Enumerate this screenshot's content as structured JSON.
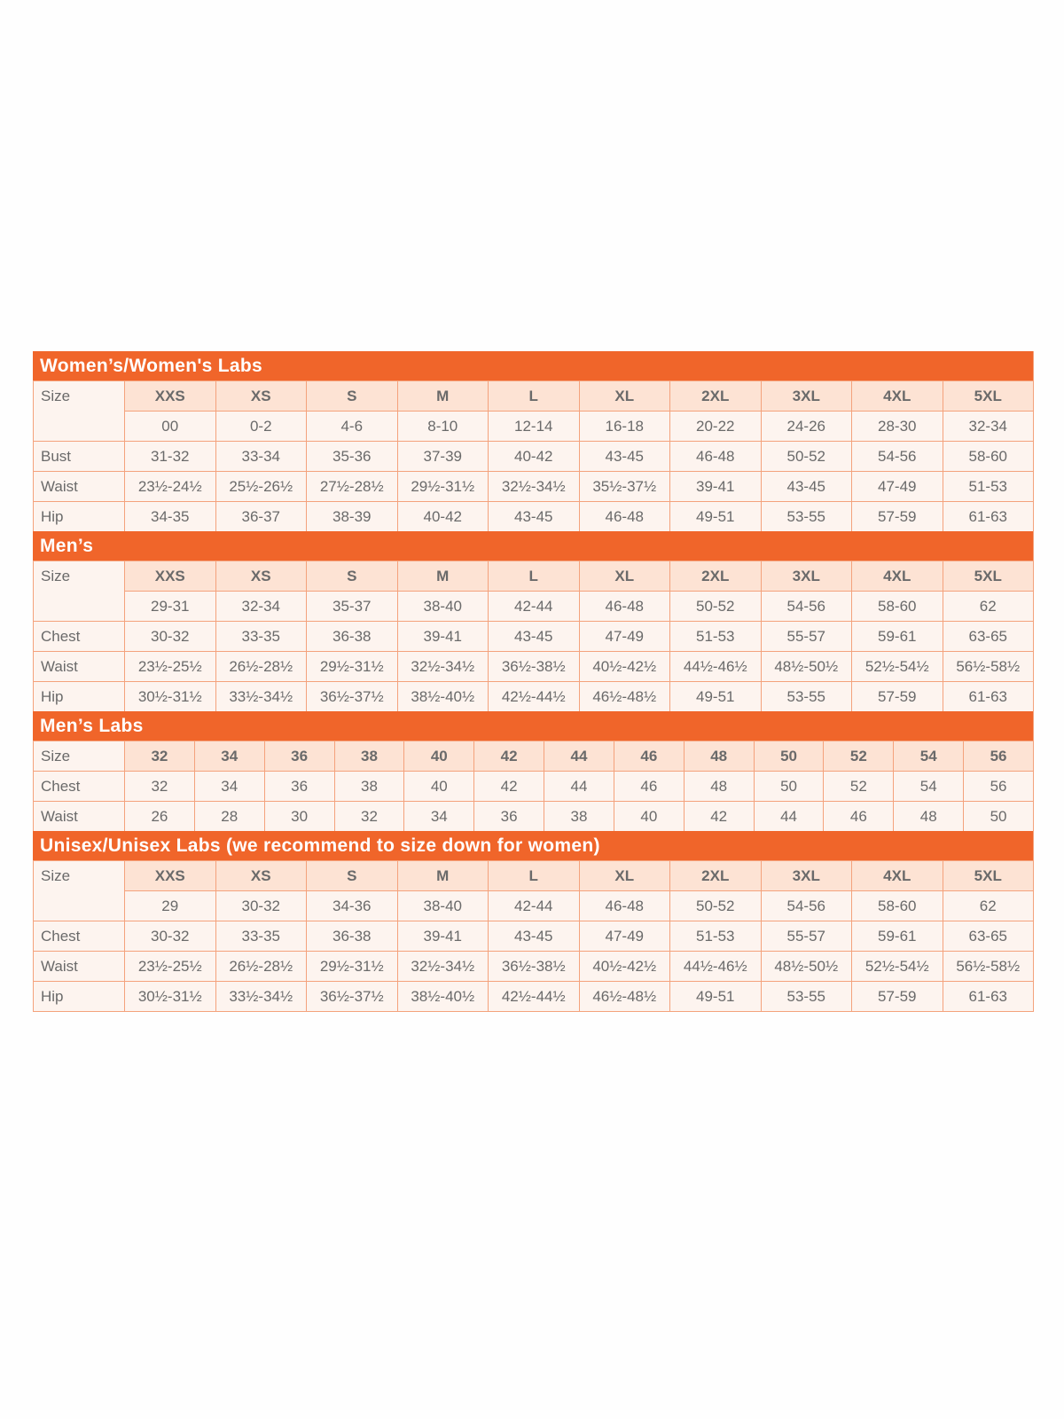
{
  "colors": {
    "accent": "#f0652a",
    "header_cell": "#fde3d4",
    "body_cell": "#fdf4ef",
    "border": "#f4a27c",
    "text": "#6a6a6a"
  },
  "sections": [
    {
      "title": "Women’s/Women's Labs",
      "size_label": "Size",
      "sizes": [
        "XXS",
        "XS",
        "S",
        "M",
        "L",
        "XL",
        "2XL",
        "3XL",
        "4XL",
        "5XL"
      ],
      "alt_sizes": [
        "00",
        "0-2",
        "4-6",
        "8-10",
        "12-14",
        "16-18",
        "20-22",
        "24-26",
        "28-30",
        "32-34"
      ],
      "rows": [
        {
          "label": "Bust",
          "values": [
            "31-32",
            "33-34",
            "35-36",
            "37-39",
            "40-42",
            "43-45",
            "46-48",
            "50-52",
            "54-56",
            "58-60"
          ]
        },
        {
          "label": "Waist",
          "values": [
            "23½-24½",
            "25½-26½",
            "27½-28½",
            "29½-31½",
            "32½-34½",
            "35½-37½",
            "39-41",
            "43-45",
            "47-49",
            "51-53"
          ]
        },
        {
          "label": "Hip",
          "values": [
            "34-35",
            "36-37",
            "38-39",
            "40-42",
            "43-45",
            "46-48",
            "49-51",
            "53-55",
            "57-59",
            "61-63"
          ]
        }
      ]
    },
    {
      "title": "Men’s",
      "size_label": "Size",
      "sizes": [
        "XXS",
        "XS",
        "S",
        "M",
        "L",
        "XL",
        "2XL",
        "3XL",
        "4XL",
        "5XL"
      ],
      "alt_sizes": [
        "29-31",
        "32-34",
        "35-37",
        "38-40",
        "42-44",
        "46-48",
        "50-52",
        "54-56",
        "58-60",
        "62"
      ],
      "rows": [
        {
          "label": "Chest",
          "values": [
            "30-32",
            "33-35",
            "36-38",
            "39-41",
            "43-45",
            "47-49",
            "51-53",
            "55-57",
            "59-61",
            "63-65"
          ]
        },
        {
          "label": "Waist",
          "values": [
            "23½-25½",
            "26½-28½",
            "29½-31½",
            "32½-34½",
            "36½-38½",
            "40½-42½",
            "44½-46½",
            "48½-50½",
            "52½-54½",
            "56½-58½"
          ]
        },
        {
          "label": "Hip",
          "values": [
            "30½-31½",
            "33½-34½",
            "36½-37½",
            "38½-40½",
            "42½-44½",
            "46½-48½",
            "49-51",
            "53-55",
            "57-59",
            "61-63"
          ]
        }
      ]
    },
    {
      "title": "Men’s Labs",
      "size_label": "Size",
      "sizes": [
        "32",
        "34",
        "36",
        "38",
        "40",
        "42",
        "44",
        "46",
        "48",
        "50",
        "52",
        "54",
        "56"
      ],
      "rows": [
        {
          "label": "Chest",
          "values": [
            "32",
            "34",
            "36",
            "38",
            "40",
            "42",
            "44",
            "46",
            "48",
            "50",
            "52",
            "54",
            "56"
          ]
        },
        {
          "label": "Waist",
          "values": [
            "26",
            "28",
            "30",
            "32",
            "34",
            "36",
            "38",
            "40",
            "42",
            "44",
            "46",
            "48",
            "50"
          ]
        }
      ]
    },
    {
      "title": "Unisex/Unisex Labs (we recommend to size down for women)",
      "size_label": "Size",
      "sizes": [
        "XXS",
        "XS",
        "S",
        "M",
        "L",
        "XL",
        "2XL",
        "3XL",
        "4XL",
        "5XL"
      ],
      "alt_sizes": [
        "29",
        "30-32",
        "34-36",
        "38-40",
        "42-44",
        "46-48",
        "50-52",
        "54-56",
        "58-60",
        "62"
      ],
      "rows": [
        {
          "label": "Chest",
          "values": [
            "30-32",
            "33-35",
            "36-38",
            "39-41",
            "43-45",
            "47-49",
            "51-53",
            "55-57",
            "59-61",
            "63-65"
          ]
        },
        {
          "label": "Waist",
          "values": [
            "23½-25½",
            "26½-28½",
            "29½-31½",
            "32½-34½",
            "36½-38½",
            "40½-42½",
            "44½-46½",
            "48½-50½",
            "52½-54½",
            "56½-58½"
          ]
        },
        {
          "label": "Hip",
          "values": [
            "30½-31½",
            "33½-34½",
            "36½-37½",
            "38½-40½",
            "42½-44½",
            "46½-48½",
            "49-51",
            "53-55",
            "57-59",
            "61-63"
          ]
        }
      ]
    }
  ]
}
